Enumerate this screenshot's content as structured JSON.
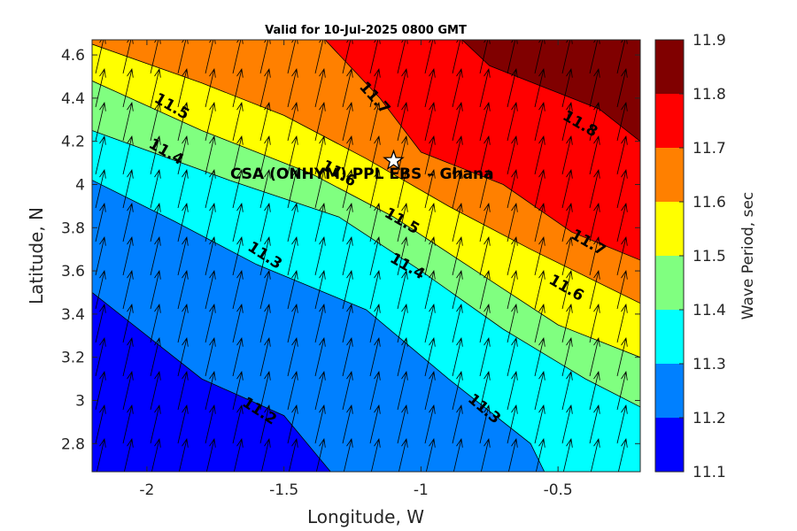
{
  "chart_data": {
    "type": "contour",
    "title": "Valid for 10-Jul-2025 0800 GMT",
    "annotation": "CSA (ONHYM) PPL EBS  – Ghana",
    "xlabel": "Longitude, W",
    "ylabel": "Latitude, N",
    "colorbar_label": "Wave Period, sec",
    "xlim": [
      -2.2,
      -0.2
    ],
    "ylim": [
      2.67,
      4.67
    ],
    "x_ticks": [
      -2,
      -1.5,
      -1,
      -0.5
    ],
    "x_tick_labels": [
      "-2",
      "-1.5",
      "-1",
      "-0.5"
    ],
    "y_ticks": [
      2.8,
      3.0,
      3.2,
      3.4,
      3.6,
      3.8,
      4.0,
      4.2,
      4.4,
      4.6
    ],
    "y_tick_labels": [
      "2.8",
      "3",
      "3.2",
      "3.4",
      "3.6",
      "3.8",
      "4",
      "4.2",
      "4.4",
      "4.6"
    ],
    "levels": [
      11.1,
      11.2,
      11.3,
      11.4,
      11.5,
      11.6,
      11.7,
      11.8,
      11.9
    ],
    "level_labels": [
      "11.1",
      "11.2",
      "11.3",
      "11.4",
      "11.5",
      "11.6",
      "11.7",
      "11.8",
      "11.9"
    ],
    "band_colors": [
      "#0000ff",
      "#0080ff",
      "#00ffff",
      "#80ff80",
      "#ffff00",
      "#ff8000",
      "#ff0000",
      "#800000"
    ],
    "contours": [
      {
        "level": 11.2,
        "label": "11.2",
        "points": [
          [
            -2.2,
            3.5
          ],
          [
            -1.8,
            3.1
          ],
          [
            -1.5,
            2.93
          ],
          [
            -1.33,
            2.67
          ]
        ]
      },
      {
        "level": 11.3,
        "label": "11.3",
        "points": [
          [
            -2.2,
            4.02
          ],
          [
            -1.9,
            3.83
          ],
          [
            -1.6,
            3.63
          ],
          [
            -1.2,
            3.42
          ],
          [
            -0.9,
            3.1
          ],
          [
            -0.6,
            2.8
          ],
          [
            -0.55,
            2.67
          ]
        ]
      },
      {
        "level": 11.4,
        "label": "11.4",
        "points": [
          [
            -2.2,
            4.25
          ],
          [
            -1.7,
            4.02
          ],
          [
            -1.3,
            3.85
          ],
          [
            -1.0,
            3.6
          ],
          [
            -0.7,
            3.33
          ],
          [
            -0.4,
            3.1
          ],
          [
            -0.2,
            2.97
          ]
        ]
      },
      {
        "level": 11.5,
        "label": "11.5",
        "points": [
          [
            -2.2,
            4.48
          ],
          [
            -1.8,
            4.25
          ],
          [
            -1.4,
            4.05
          ],
          [
            -1.1,
            3.85
          ],
          [
            -0.8,
            3.6
          ],
          [
            -0.5,
            3.35
          ],
          [
            -0.2,
            3.2
          ]
        ]
      },
      {
        "level": 11.6,
        "label": "11.6",
        "points": [
          [
            -2.2,
            4.65
          ],
          [
            -1.8,
            4.47
          ],
          [
            -1.5,
            4.32
          ],
          [
            -1.2,
            4.12
          ],
          [
            -0.9,
            3.9
          ],
          [
            -0.6,
            3.7
          ],
          [
            -0.2,
            3.45
          ]
        ]
      },
      {
        "level": 11.7,
        "label": "11.7",
        "points": [
          [
            -1.35,
            4.67
          ],
          [
            -1.15,
            4.4
          ],
          [
            -1.0,
            4.15
          ],
          [
            -0.7,
            4.0
          ],
          [
            -0.45,
            3.78
          ],
          [
            -0.2,
            3.65
          ]
        ]
      },
      {
        "level": 11.8,
        "label": "11.8",
        "points": [
          [
            -0.85,
            4.67
          ],
          [
            -0.75,
            4.55
          ],
          [
            -0.55,
            4.45
          ],
          [
            -0.35,
            4.35
          ],
          [
            -0.2,
            4.2
          ]
        ]
      }
    ],
    "contour_labels": [
      {
        "text": "11.2",
        "x": -1.59,
        "y": 2.95,
        "angle": 33
      },
      {
        "text": "11.3",
        "x": -1.57,
        "y": 3.67,
        "angle": 33
      },
      {
        "text": "11.3",
        "x": -0.77,
        "y": 2.96,
        "angle": 40
      },
      {
        "text": "11.4",
        "x": -1.93,
        "y": 4.15,
        "angle": 30
      },
      {
        "text": "11.4",
        "x": -1.05,
        "y": 3.62,
        "angle": 30
      },
      {
        "text": "11.5",
        "x": -1.91,
        "y": 4.36,
        "angle": 30
      },
      {
        "text": "11.5",
        "x": -1.07,
        "y": 3.83,
        "angle": 30
      },
      {
        "text": "11.6",
        "x": -1.3,
        "y": 4.05,
        "angle": 30
      },
      {
        "text": "11.6",
        "x": -0.47,
        "y": 3.52,
        "angle": 30
      },
      {
        "text": "11.7",
        "x": -1.17,
        "y": 4.4,
        "angle": 48
      },
      {
        "text": "11.7",
        "x": -0.39,
        "y": 3.73,
        "angle": 30
      },
      {
        "text": "11.8",
        "x": -0.42,
        "y": 4.28,
        "angle": 30
      }
    ],
    "site_marker": {
      "type": "star",
      "x": -1.1,
      "y": 4.11
    },
    "vector_field": {
      "description": "wave direction arrows pointing north-northeast on a regular grid",
      "direction_deg": 13
    }
  }
}
